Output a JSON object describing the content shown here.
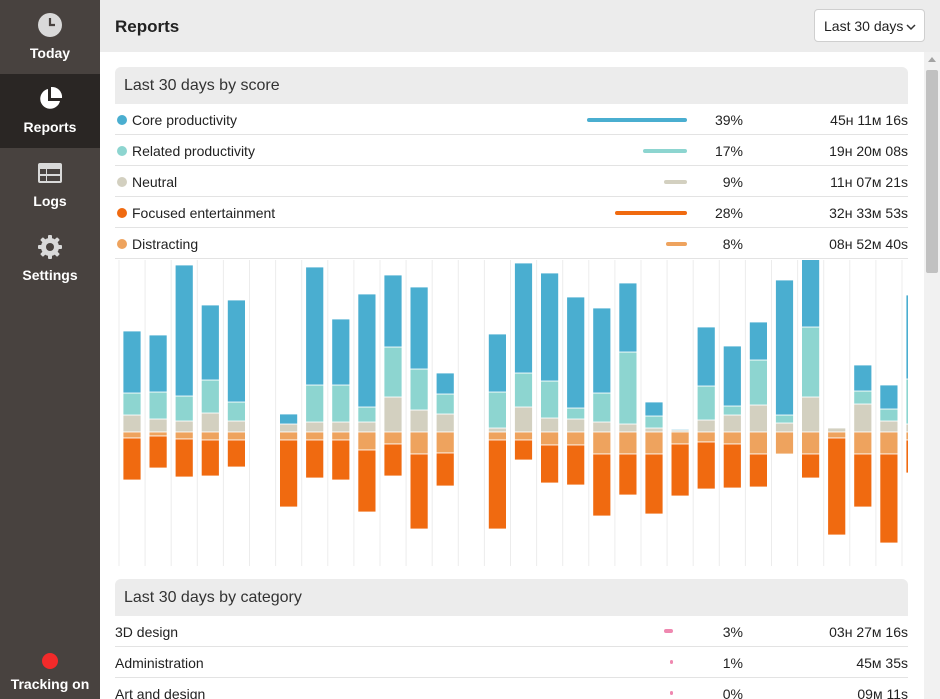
{
  "sidebar": {
    "items": [
      {
        "label": "Today",
        "icon": "clock-icon"
      },
      {
        "label": "Reports",
        "icon": "pie-chart-icon"
      },
      {
        "label": "Logs",
        "icon": "table-icon"
      },
      {
        "label": "Settings",
        "icon": "gear-icon"
      }
    ],
    "tracking_label": "Tracking on",
    "tracking_color": "#f22a2a"
  },
  "header": {
    "title": "Reports",
    "range_selected": "Last 30 days"
  },
  "score_section": {
    "title": "Last 30 days by score",
    "rows": [
      {
        "name": "Core productivity",
        "color": "#4aaed0",
        "share": 0.39,
        "pct": "39%",
        "duration": "45ʜ 11ᴍ 16s"
      },
      {
        "name": "Related productivity",
        "color": "#8dd5d0",
        "share": 0.17,
        "pct": "17%",
        "duration": "19ʜ 20ᴍ 08s"
      },
      {
        "name": "Neutral",
        "color": "#d3d0c0",
        "share": 0.09,
        "pct": "9%",
        "duration": "11ʜ 07ᴍ 21s"
      },
      {
        "name": "Focused entertainment",
        "color": "#f06a10",
        "share": 0.28,
        "pct": "28%",
        "duration": "32ʜ 33ᴍ 53s"
      },
      {
        "name": "Distracting",
        "color": "#eea35e",
        "share": 0.08,
        "pct": "8%",
        "duration": "08ʜ 52ᴍ 40s"
      }
    ]
  },
  "chart_data": {
    "type": "bar",
    "subtype": "diverging-stacked",
    "title": "Last 30 days by score",
    "x": [
      1,
      2,
      3,
      4,
      5,
      6,
      7,
      8,
      9,
      10,
      11,
      12,
      13,
      14,
      15,
      16,
      17,
      18,
      19,
      20,
      21,
      22,
      23,
      24,
      25,
      26,
      27,
      28,
      29,
      30,
      31
    ],
    "series": [
      {
        "name": "Core productivity",
        "color": "#4aaed0",
        "direction": "up",
        "values": [
          62,
          57,
          131,
          75,
          102,
          0,
          10,
          118,
          66,
          113,
          72,
          82,
          21,
          0,
          58,
          110,
          108,
          111,
          85,
          69,
          14,
          1,
          59,
          60,
          38,
          135,
          68,
          0,
          26,
          24,
          84
        ]
      },
      {
        "name": "Related productivity",
        "color": "#8dd5d0",
        "direction": "up",
        "values": [
          22,
          27,
          25,
          33,
          19,
          0,
          0,
          37,
          37,
          15,
          50,
          41,
          20,
          0,
          36,
          34,
          37,
          11,
          29,
          72,
          12,
          0,
          34,
          9,
          45,
          8,
          70,
          0,
          13,
          12,
          45
        ]
      },
      {
        "name": "Neutral",
        "color": "#d3d0c0",
        "direction": "up",
        "values": [
          17,
          13,
          11,
          19,
          11,
          0,
          8,
          10,
          10,
          10,
          35,
          22,
          18,
          0,
          4,
          25,
          14,
          13,
          10,
          8,
          4,
          2,
          12,
          17,
          27,
          9,
          35,
          4,
          28,
          11,
          8
        ]
      },
      {
        "name": "Distracting",
        "color": "#eea35e",
        "direction": "down",
        "values": [
          6,
          4,
          7,
          8,
          8,
          0,
          8,
          8,
          8,
          18,
          12,
          22,
          21,
          0,
          8,
          8,
          13,
          13,
          22,
          22,
          22,
          12,
          10,
          12,
          22,
          22,
          22,
          6,
          22,
          22,
          8
        ]
      },
      {
        "name": "Focused entertainment",
        "color": "#f06a10",
        "direction": "down",
        "values": [
          42,
          32,
          38,
          36,
          27,
          0,
          67,
          38,
          40,
          62,
          32,
          75,
          33,
          0,
          89,
          20,
          38,
          40,
          62,
          41,
          60,
          52,
          47,
          44,
          33,
          0,
          24,
          97,
          53,
          89,
          33
        ]
      }
    ],
    "xlabel": "",
    "ylabel": "",
    "grid": true,
    "legend": "none"
  },
  "category_section": {
    "title": "Last 30 days by category",
    "rows": [
      {
        "name": "3D design",
        "share": 0.03,
        "pct": "3%",
        "duration": "03ʜ 27ᴍ 16s"
      },
      {
        "name": "Administration",
        "share": 0.01,
        "pct": "1%",
        "duration": "45ᴍ 35s"
      },
      {
        "name": "Art and design",
        "share": 0.0,
        "pct": "0%",
        "duration": "09ᴍ 11s"
      }
    ]
  }
}
